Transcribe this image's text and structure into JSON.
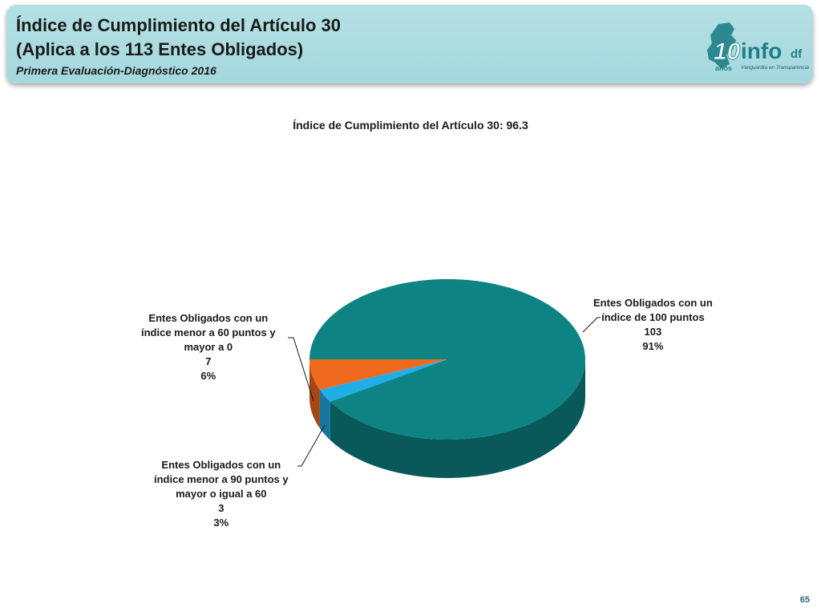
{
  "header": {
    "title_line1": "Índice de Cumplimiento del Artículo 30",
    "title_line2": "(Aplica a los 113 Entes Obligados)",
    "subtitle": "Primera Evaluación-Diagnóstico 2016"
  },
  "logo": {
    "years_number": "10",
    "years_word": "años",
    "brand": "info",
    "brand_suffix": "df",
    "tagline": "Vanguardia en Transparencia"
  },
  "page_number": "65",
  "colors": {
    "header_bg": "#a8dade",
    "slice_100": "#0e8383",
    "slice_60_90": "#20aee8",
    "slice_0_60": "#ef6a1e"
  },
  "chart_data": {
    "type": "pie",
    "title": "Índice de Cumplimiento del Artículo 30: 96.3",
    "three_d": true,
    "slices": [
      {
        "key": "s100",
        "label_lines": [
          "Entes Obligados con un",
          "índice de 100 puntos"
        ],
        "value": 103,
        "percent": "91%",
        "color": "#0e8383"
      },
      {
        "key": "s60_90",
        "label_lines": [
          "Entes Obligados con un",
          "índice menor a 90 puntos y",
          "mayor o igual a 60"
        ],
        "value": 3,
        "percent": "3%",
        "color": "#20aee8"
      },
      {
        "key": "s0_60",
        "label_lines": [
          "Entes Obligados con un",
          "índice menor a 60 puntos y",
          "mayor a 0"
        ],
        "value": 7,
        "percent": "6%",
        "color": "#ef6a1e"
      }
    ]
  }
}
